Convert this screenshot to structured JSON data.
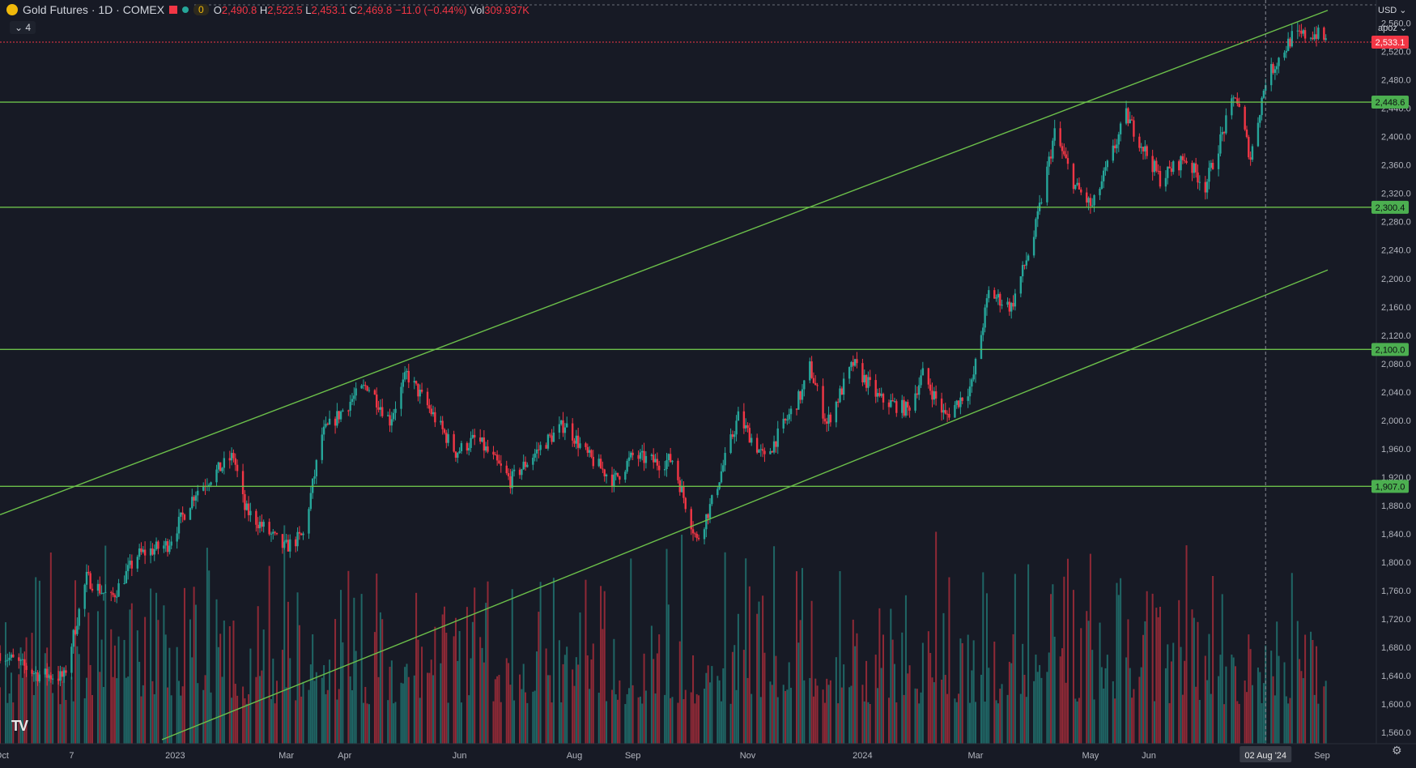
{
  "header": {
    "symbol": "Gold Futures · 1D · COMEX",
    "indicator_value": "0",
    "open_label": "O",
    "open": "2,490.8",
    "high_label": "H",
    "high": "2,522.5",
    "low_label": "L",
    "low": "2,453.1",
    "close_label": "C",
    "close": "2,469.8",
    "change": "−11.0 (−0.44%)",
    "volume_label": "Vol",
    "volume": "309.937K",
    "collapse_count": "4",
    "currency": "USD",
    "scale_mode": "apoz"
  },
  "colors": {
    "background": "#171a25",
    "up": "#26a69a",
    "down": "#f23645",
    "trendline": "#6cc04a",
    "level_label_bg": "#4caf50",
    "last_price_bg": "#f23645"
  },
  "chart_data": {
    "type": "candlestick",
    "y_axis": {
      "ticks": [
        1560,
        1600,
        1640,
        1680,
        1720,
        1760,
        1800,
        1840,
        1880,
        1920,
        1960,
        2000,
        2040,
        2080,
        2120,
        2160,
        2200,
        2240,
        2280,
        2320,
        2360,
        2400,
        2440,
        2480,
        2520,
        2560
      ],
      "tick_labels": [
        "1,560.0",
        "1,600.0",
        "1,640.0",
        "1,680.0",
        "1,720.0",
        "1,760.0",
        "1,800.0",
        "1,840.0",
        "1,880.0",
        "1,920.0",
        "1,960.0",
        "2,000.0",
        "2,040.0",
        "2,080.0",
        "2,120.0",
        "2,160.0",
        "2,200.0",
        "2,240.0",
        "2,280.0",
        "2,320.0",
        "2,360.0",
        "2,400.0",
        "2,440.0",
        "2,480.0",
        "2,520.0",
        "2,560.0"
      ],
      "range": [
        1550,
        2580
      ]
    },
    "x_axis": {
      "labels": [
        "Oct",
        "7",
        "2023",
        "Mar",
        "Apr",
        "Jun",
        "Aug",
        "Sep",
        "Nov",
        "2024",
        "Mar",
        "May",
        "Jun",
        "02 Aug '24",
        "Sep"
      ],
      "label_dates": [
        "2022-10-01",
        "2022-11-07",
        "2023-01-01",
        "2023-03-01",
        "2023-04-01",
        "2023-06-01",
        "2023-08-01",
        "2023-09-01",
        "2023-11-01",
        "2024-01-01",
        "2024-03-01",
        "2024-05-01",
        "2024-06-01",
        "2024-08-02",
        "2024-09-01"
      ],
      "range": [
        "2022-09-30",
        "2024-09-04"
      ],
      "crosshair_date": "2024-08-02",
      "crosshair_label": "02 Aug '24"
    },
    "horizontal_levels": [
      {
        "value": 2448.6,
        "label": "2,448.6"
      },
      {
        "value": 2300.4,
        "label": "2,300.4"
      },
      {
        "value": 2100.0,
        "label": "2,100.0"
      },
      {
        "value": 1907.0,
        "label": "1,907.0"
      }
    ],
    "last_price": {
      "value": 2533.1,
      "label": "2,533.1"
    },
    "trendlines": [
      {
        "from": [
          "2022-09-30",
          1867
        ],
        "to": [
          "2024-09-04",
          2578
        ]
      },
      {
        "from": [
          "2022-12-25",
          1550
        ],
        "to": [
          "2024-09-04",
          2212
        ]
      }
    ],
    "price_path": [
      [
        "2022-09-30",
        1672
      ],
      [
        "2022-10-20",
        1642
      ],
      [
        "2022-11-03",
        1638
      ],
      [
        "2022-11-15",
        1778
      ],
      [
        "2022-11-28",
        1748
      ],
      [
        "2022-12-12",
        1810
      ],
      [
        "2022-12-28",
        1825
      ],
      [
        "2023-01-12",
        1900
      ],
      [
        "2023-02-01",
        1950
      ],
      [
        "2023-02-07",
        1875
      ],
      [
        "2023-02-28",
        1820
      ],
      [
        "2023-03-10",
        1838
      ],
      [
        "2023-03-20",
        1980
      ],
      [
        "2023-04-05",
        2030
      ],
      [
        "2023-04-13",
        2050
      ],
      [
        "2023-04-25",
        2000
      ],
      [
        "2023-05-04",
        2065
      ],
      [
        "2023-05-15",
        2020
      ],
      [
        "2023-05-30",
        1955
      ],
      [
        "2023-06-10",
        1975
      ],
      [
        "2023-06-28",
        1915
      ],
      [
        "2023-07-15",
        1965
      ],
      [
        "2023-07-27",
        1995
      ],
      [
        "2023-08-08",
        1950
      ],
      [
        "2023-08-22",
        1915
      ],
      [
        "2023-09-01",
        1950
      ],
      [
        "2023-09-15",
        1940
      ],
      [
        "2023-09-22",
        1945
      ],
      [
        "2023-10-05",
        1830
      ],
      [
        "2023-10-13",
        1885
      ],
      [
        "2023-10-27",
        2005
      ],
      [
        "2023-11-10",
        1945
      ],
      [
        "2023-11-30",
        2040
      ],
      [
        "2023-12-04",
        2075
      ],
      [
        "2023-12-13",
        1995
      ],
      [
        "2023-12-27",
        2080
      ],
      [
        "2024-01-10",
        2030
      ],
      [
        "2024-01-25",
        2015
      ],
      [
        "2024-02-02",
        2065
      ],
      [
        "2024-02-14",
        2005
      ],
      [
        "2024-02-28",
        2050
      ],
      [
        "2024-03-08",
        2180
      ],
      [
        "2024-03-20",
        2160
      ],
      [
        "2024-04-01",
        2260
      ],
      [
        "2024-04-12",
        2405
      ],
      [
        "2024-04-23",
        2330
      ],
      [
        "2024-05-02",
        2300
      ],
      [
        "2024-05-20",
        2430
      ],
      [
        "2024-06-07",
        2340
      ],
      [
        "2024-06-20",
        2370
      ],
      [
        "2024-07-01",
        2330
      ],
      [
        "2024-07-17",
        2460
      ],
      [
        "2024-07-25",
        2370
      ],
      [
        "2024-08-02",
        2480
      ],
      [
        "2024-08-16",
        2540
      ],
      [
        "2024-08-29",
        2545
      ],
      [
        "2024-09-04",
        2533
      ]
    ],
    "volume_scale": {
      "min": 1560,
      "max": 1850
    }
  }
}
